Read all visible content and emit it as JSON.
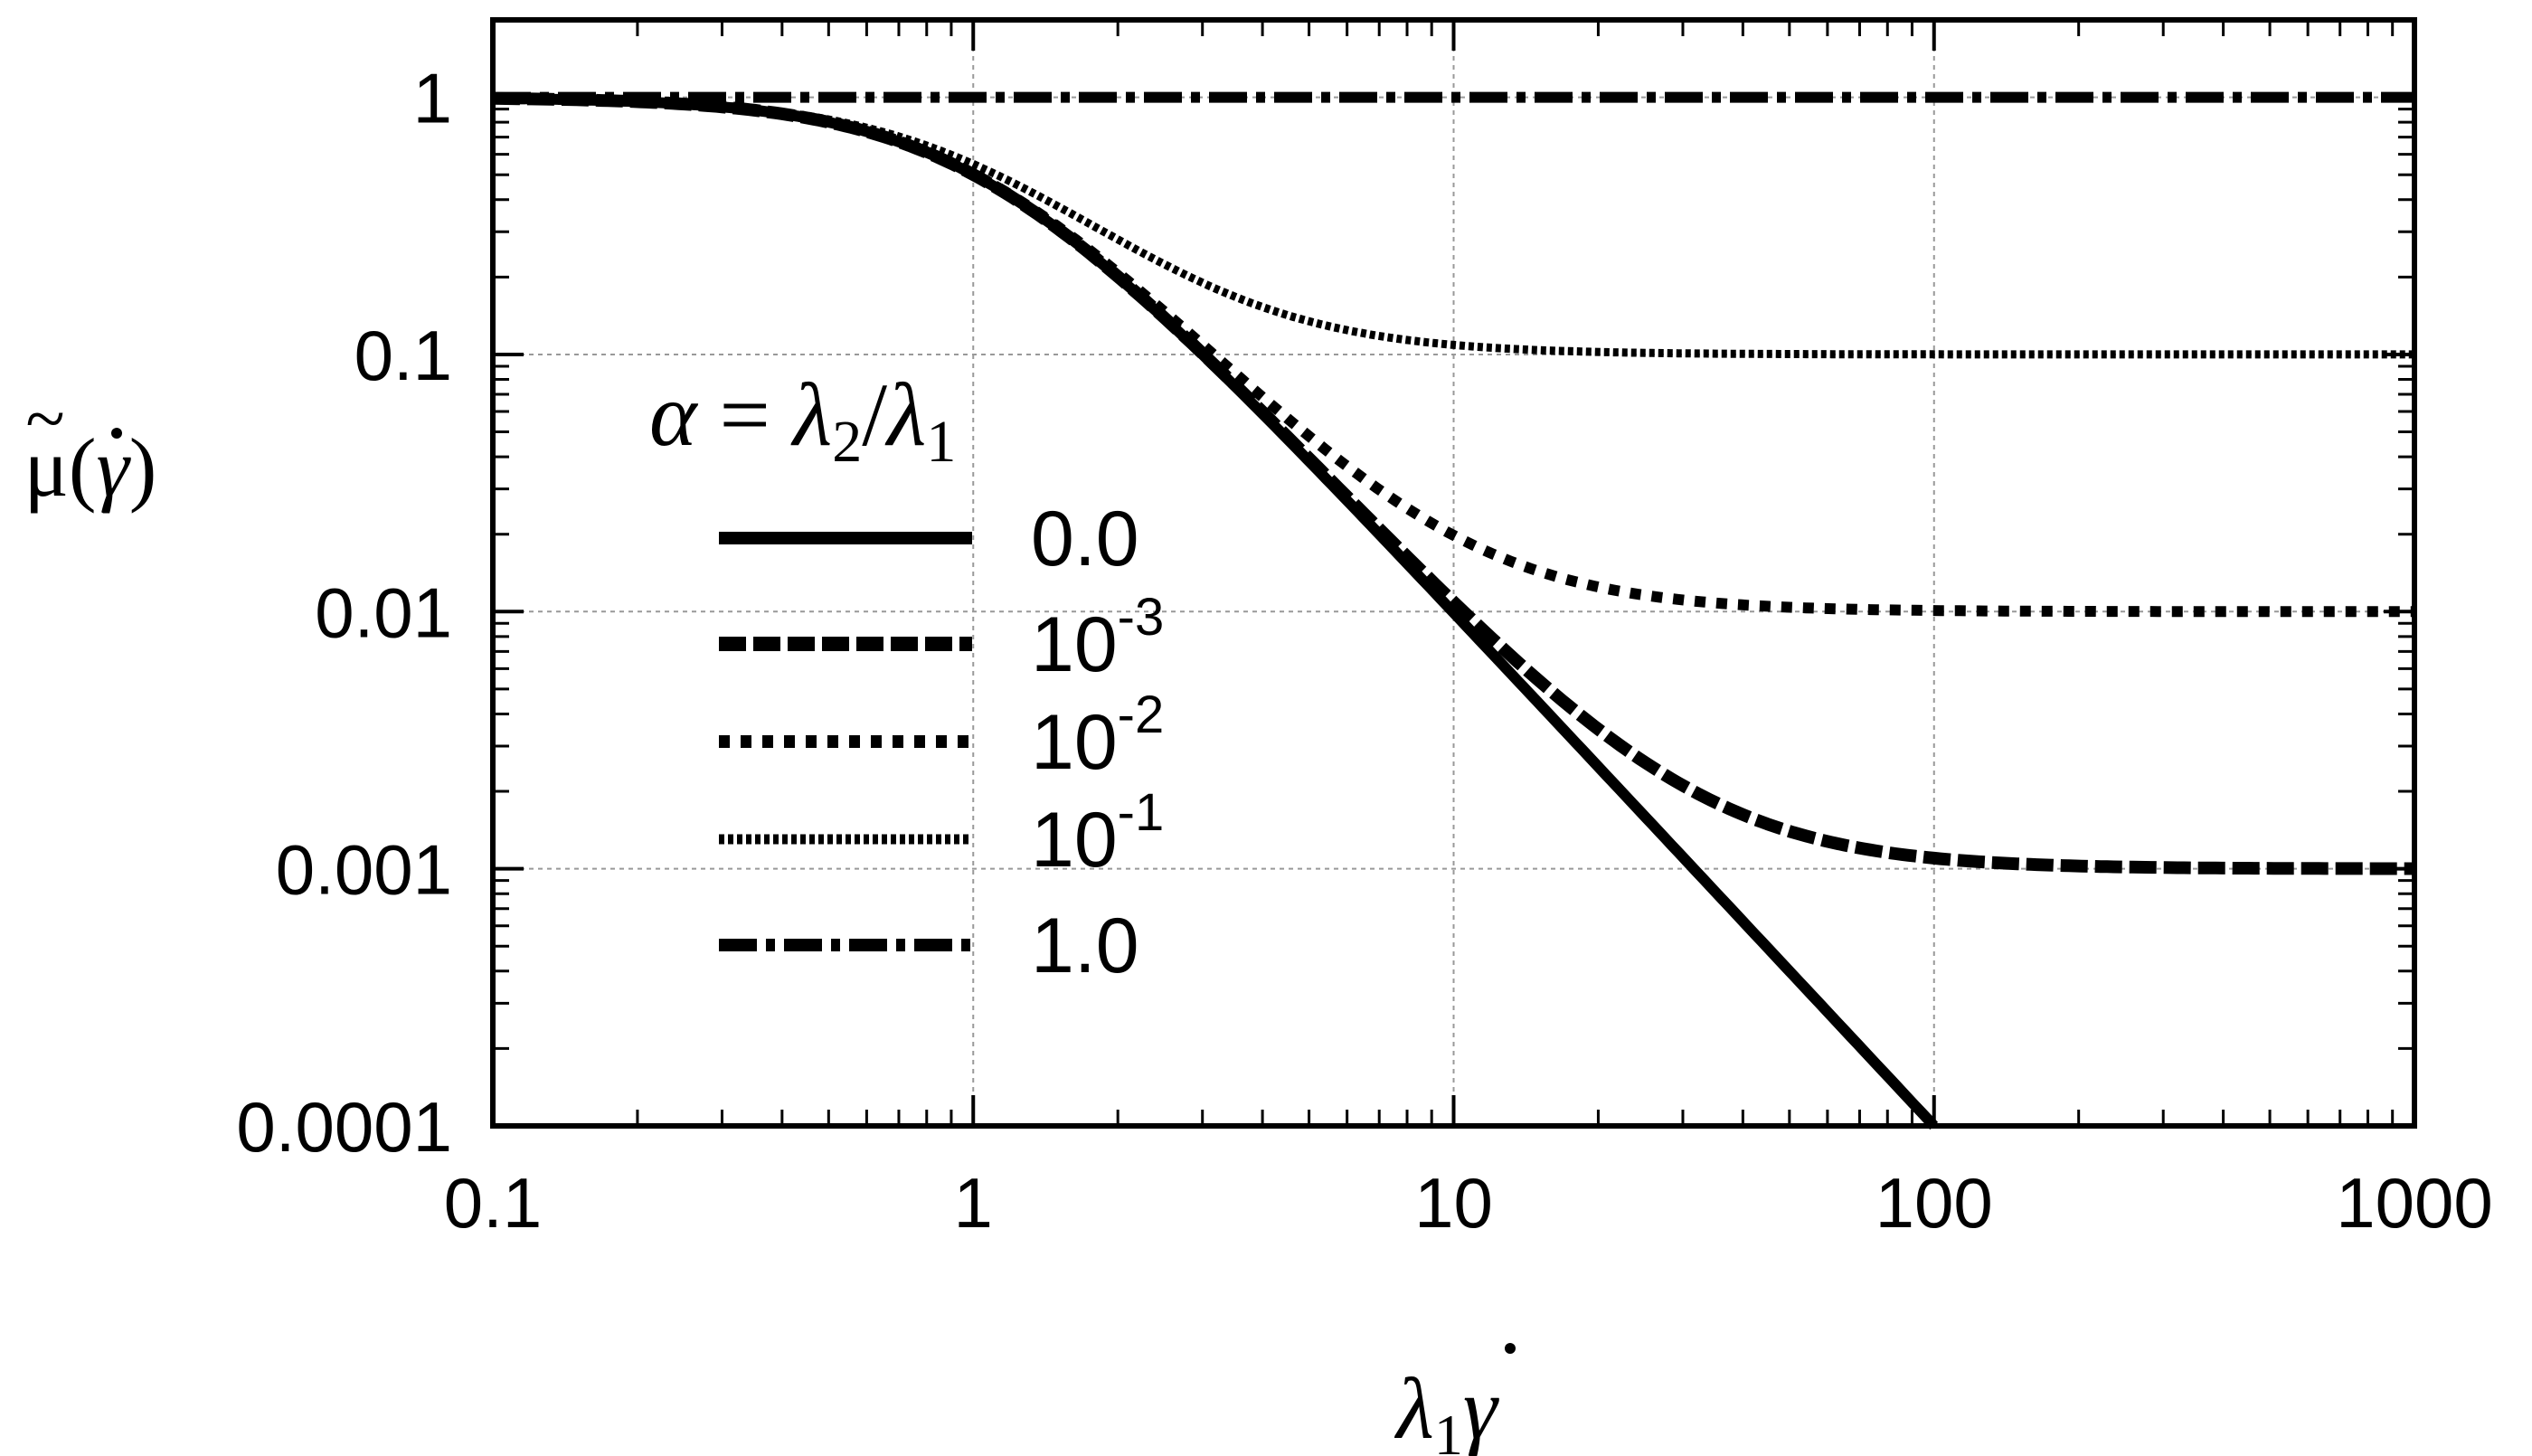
{
  "chart_data": {
    "type": "line",
    "title": "",
    "xlabel": "λ₁γ̇",
    "ylabel": "μ̃(γ̇)",
    "xscale": "log",
    "yscale": "log",
    "xlim": [
      0.1,
      1000
    ],
    "ylim": [
      0.0001,
      2
    ],
    "grid": true,
    "x_ticks": [
      {
        "value": 0.1,
        "label": "0.1"
      },
      {
        "value": 1,
        "label": "1"
      },
      {
        "value": 10,
        "label": "10"
      },
      {
        "value": 100,
        "label": "100"
      },
      {
        "value": 1000,
        "label": "1000"
      }
    ],
    "y_ticks": [
      {
        "value": 1,
        "label": "1"
      },
      {
        "value": 0.1,
        "label": "0.1"
      },
      {
        "value": 0.01,
        "label": "0.01"
      },
      {
        "value": 0.001,
        "label": "0.001"
      },
      {
        "value": 0.0001,
        "label": "0.0001"
      }
    ],
    "legend": {
      "title": "α = λ₂/λ₁",
      "position": "center-left"
    },
    "series": [
      {
        "name": "0.0",
        "alpha": 0,
        "label_base": "0.0",
        "label_exp": "",
        "style": "solid",
        "x": [
          0.1,
          0.2,
          0.3,
          0.5,
          0.7,
          1,
          1.5,
          2,
          3,
          5,
          7,
          10,
          20,
          50,
          100
        ],
        "y": [
          0.9901,
          0.9615,
          0.9174,
          0.8,
          0.6711,
          0.5,
          0.3077,
          0.2,
          0.1,
          0.0385,
          0.02,
          0.0099,
          0.0025,
          0.0004,
          0.0001
        ]
      },
      {
        "name": "10^-3",
        "alpha": 0.001,
        "label_base": "10",
        "label_exp": "-3",
        "style": "dashed",
        "x": [
          0.1,
          0.3,
          0.5,
          1,
          2,
          3,
          5,
          10,
          20,
          30,
          50,
          100,
          200,
          500,
          1000
        ],
        "y": [
          0.9901,
          0.9175,
          0.8002,
          0.5005,
          0.2008,
          0.1009,
          0.0394,
          0.0109,
          0.0035,
          0.0021,
          0.0014,
          0.0011,
          0.001,
          0.001,
          0.001
        ]
      },
      {
        "name": "10^-2",
        "alpha": 0.01,
        "label_base": "10",
        "label_exp": "-2",
        "style": "dotted",
        "x": [
          0.1,
          0.3,
          0.5,
          1,
          2,
          3,
          5,
          10,
          20,
          30,
          50,
          100,
          200,
          500,
          1000
        ],
        "y": [
          0.9902,
          0.9182,
          0.802,
          0.505,
          0.208,
          0.109,
          0.0481,
          0.0199,
          0.0125,
          0.0111,
          0.0104,
          0.0101,
          0.01,
          0.01,
          0.01
        ]
      },
      {
        "name": "10^-1",
        "alpha": 0.1,
        "label_base": "10",
        "label_exp": "-1",
        "style": "fine-dotted",
        "x": [
          0.1,
          0.3,
          0.5,
          1,
          2,
          3,
          5,
          10,
          20,
          50,
          100,
          300,
          1000
        ],
        "y": [
          0.9911,
          0.9257,
          0.82,
          0.55,
          0.28,
          0.19,
          0.1346,
          0.1089,
          0.1022,
          0.1004,
          0.1001,
          0.1,
          0.1
        ]
      },
      {
        "name": "1.0",
        "alpha": 1,
        "label_base": "1.0",
        "label_exp": "",
        "style": "dash-dot",
        "x": [
          0.1,
          1000
        ],
        "y": [
          1,
          1
        ]
      }
    ]
  }
}
